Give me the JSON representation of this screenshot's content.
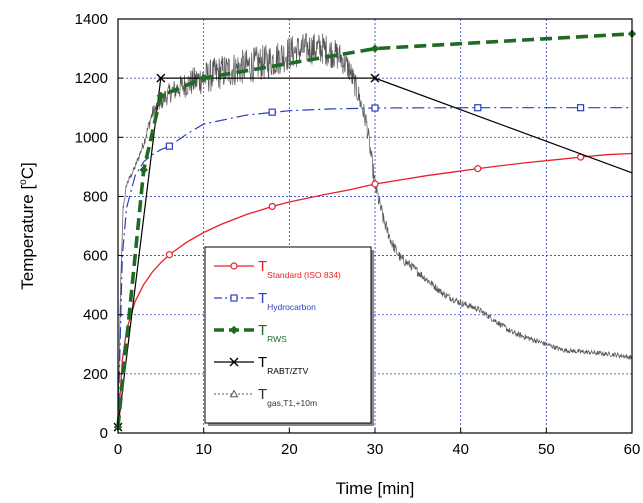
{
  "chart_data": {
    "type": "line",
    "title": "",
    "xlabel": "Time [min]",
    "ylabel_main": "Temperature [",
    "ylabel_sup": "o",
    "ylabel_unit": "C]",
    "xlim": [
      0,
      60
    ],
    "ylim": [
      0,
      1400
    ],
    "xticks": [
      0,
      10,
      20,
      30,
      40,
      50,
      60
    ],
    "yticks": [
      0,
      200,
      400,
      600,
      800,
      1000,
      1200,
      1400
    ],
    "grid": true,
    "legend_position": "lower-left-center",
    "series": [
      {
        "name_main": "T",
        "name_sub": "Standard (ISO 834)",
        "color": "#e8202a",
        "marker": "circle",
        "style": "solid",
        "x": [
          0,
          0.5,
          1,
          2,
          3,
          4,
          5,
          6,
          8,
          10,
          12,
          15,
          18,
          20,
          24,
          27,
          30,
          33,
          36,
          39,
          42,
          45,
          48,
          51,
          54,
          57,
          60
        ],
        "y": [
          20,
          246,
          349,
          445,
          502,
          544,
          576,
          603,
          645,
          678,
          705,
          739,
          766,
          781,
          806,
          822,
          842,
          856,
          870,
          882,
          894,
          905,
          915,
          924,
          933,
          941,
          945
        ],
        "markers_x": [
          6,
          18,
          30,
          42,
          54
        ],
        "markers_y": [
          603,
          766,
          842,
          894,
          933
        ]
      },
      {
        "name_main": "T",
        "name_sub": "Hydrocarbon",
        "color": "#2b3fbf",
        "marker": "square",
        "style": "dashdot",
        "x": [
          0,
          0.5,
          1,
          2,
          3,
          4,
          5,
          6,
          8,
          10,
          15,
          20,
          25,
          30,
          40,
          50,
          60
        ],
        "y": [
          20,
          600,
          762,
          870,
          917,
          941,
          958,
          970,
          1010,
          1045,
          1075,
          1090,
          1096,
          1099,
          1100,
          1100,
          1100
        ],
        "markers_x": [
          6,
          18,
          30,
          42,
          54
        ],
        "markers_y": [
          970,
          1085,
          1099,
          1100,
          1100
        ]
      },
      {
        "name_main": "T",
        "name_sub": "RWS",
        "color": "#1f6b25",
        "marker": "diamond",
        "style": "dashed-bold",
        "x": [
          0,
          3,
          5,
          10,
          30,
          60
        ],
        "y": [
          20,
          890,
          1140,
          1200,
          1300,
          1350
        ],
        "markers_x": [
          0,
          3,
          5,
          10,
          30,
          60
        ],
        "markers_y": [
          20,
          890,
          1140,
          1200,
          1300,
          1350
        ]
      },
      {
        "name_main": "T",
        "name_sub": "RABT/ZTV",
        "color": "#000000",
        "marker": "x",
        "style": "solid",
        "x": [
          0,
          5,
          30,
          60
        ],
        "y": [
          20,
          1200,
          1200,
          880
        ],
        "markers_x": [
          0,
          5,
          30
        ],
        "markers_y": [
          20,
          1200,
          1200
        ]
      },
      {
        "name_main": "T",
        "name_sub": "gas,T1,+10m",
        "color": "#555555",
        "marker": "triangle",
        "style": "noisy-dotted",
        "x": [
          0,
          0.3,
          0.6,
          1,
          1.5,
          2,
          3,
          4,
          5,
          6,
          8,
          10,
          12,
          15,
          18,
          20,
          22,
          24,
          26,
          27,
          28,
          29,
          30,
          31,
          32,
          33,
          34,
          36,
          38,
          40,
          42,
          44,
          46,
          48,
          50,
          52,
          54,
          56,
          58,
          60
        ],
        "y": [
          20,
          500,
          760,
          840,
          870,
          900,
          980,
          1080,
          1120,
          1150,
          1180,
          1200,
          1220,
          1240,
          1260,
          1285,
          1300,
          1300,
          1270,
          1230,
          1150,
          1050,
          840,
          720,
          640,
          590,
          570,
          520,
          470,
          440,
          420,
          380,
          340,
          320,
          300,
          280,
          275,
          270,
          265,
          255
        ],
        "noise_amplitude": [
          0,
          0,
          10,
          10,
          10,
          10,
          15,
          25,
          30,
          35,
          45,
          55,
          60,
          60,
          60,
          60,
          55,
          55,
          50,
          45,
          40,
          35,
          30,
          25,
          20,
          18,
          16,
          14,
          12,
          12,
          10,
          10,
          10,
          10,
          8,
          8,
          8,
          8,
          8,
          8
        ]
      }
    ]
  }
}
